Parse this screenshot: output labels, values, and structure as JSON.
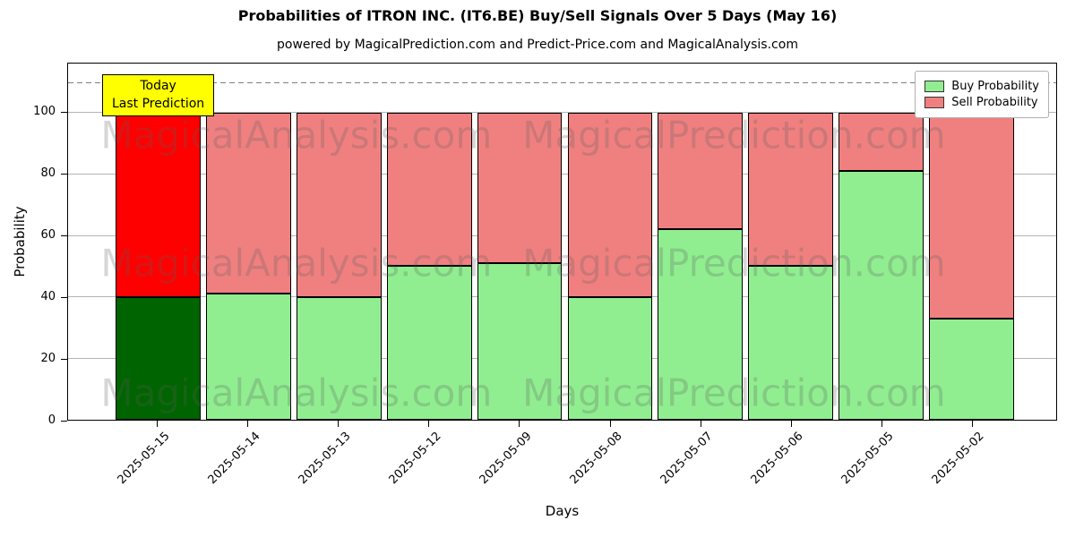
{
  "title": "Probabilities of ITRON INC. (IT6.BE) Buy/Sell Signals Over 5 Days (May 16)",
  "subtitle": "powered by MagicalPrediction.com and Predict-Price.com and MagicalAnalysis.com",
  "annotation": {
    "line1": "Today",
    "line2": "Last Prediction"
  },
  "legend": [
    {
      "label": "Buy Probability",
      "color": "#90ee90"
    },
    {
      "label": "Sell Probability",
      "color": "#f08080"
    }
  ],
  "watermarks": [
    "MagicalAnalysis.com",
    "MagicalPrediction.com"
  ],
  "chart_data": {
    "type": "bar",
    "stacked": true,
    "title": "Probabilities of ITRON INC. (IT6.BE) Buy/Sell Signals Over 5 Days (May 16)",
    "xlabel": "Days",
    "ylabel": "Probability",
    "categories": [
      "2025-05-15",
      "2025-05-14",
      "2025-05-13",
      "2025-05-12",
      "2025-05-09",
      "2025-05-08",
      "2025-05-07",
      "2025-05-06",
      "2025-05-05",
      "2025-05-02"
    ],
    "series": [
      {
        "name": "Buy Probability",
        "values": [
          40,
          41,
          40,
          50,
          51,
          40,
          62,
          50,
          81,
          33
        ]
      },
      {
        "name": "Sell Probability",
        "values": [
          60,
          59,
          60,
          50,
          49,
          60,
          38,
          50,
          19,
          67
        ]
      }
    ],
    "ylim": [
      0,
      116
    ],
    "yticks": [
      0,
      20,
      40,
      60,
      80,
      100
    ],
    "dashed_line_y": 110,
    "grid": true,
    "legend_position": "upper right",
    "bar_colors": {
      "today": {
        "buy": "#006400",
        "sell": "#ff0000"
      },
      "normal": {
        "buy": "#90ee90",
        "sell": "#f08080"
      }
    }
  }
}
